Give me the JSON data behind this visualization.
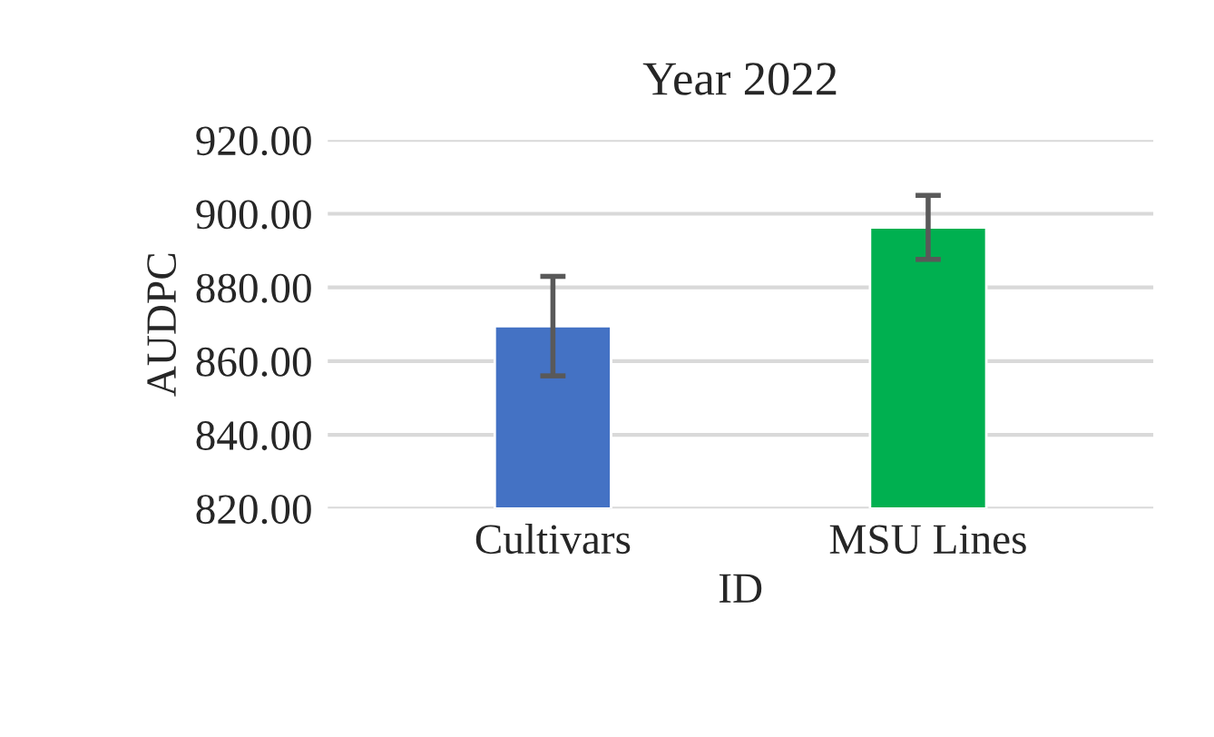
{
  "chart_data": {
    "type": "bar",
    "title": "Year 2022",
    "xlabel": "ID",
    "ylabel": "AUDPC",
    "categories": [
      "Cultivars",
      "MSU Lines"
    ],
    "values": [
      869.5,
      896.3
    ],
    "colors": [
      "#4472c4",
      "#00b050"
    ],
    "errors": [
      13.5,
      8.7
    ],
    "ylim": [
      820,
      920
    ],
    "yticks": [
      {
        "value": 820,
        "label": "820.00"
      },
      {
        "value": 840,
        "label": "840.00"
      },
      {
        "value": 860,
        "label": "860.00"
      },
      {
        "value": 880,
        "label": "880.00"
      },
      {
        "value": 900,
        "label": "900.00"
      },
      {
        "value": 920,
        "label": "920.00"
      }
    ],
    "grid": "y",
    "legend": false
  }
}
